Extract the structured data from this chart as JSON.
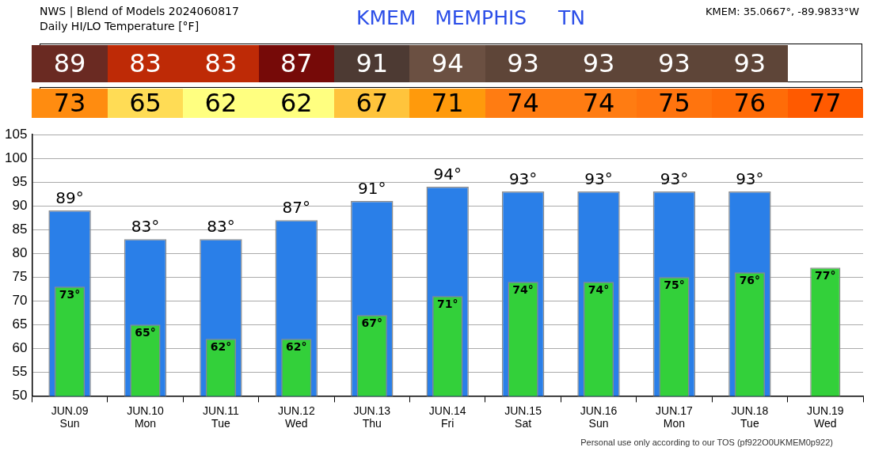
{
  "chart_data": {
    "type": "bar",
    "title": "NWS | Blend of Models 2024060817",
    "subtitle": "Daily HI/LO Temperature [°F]",
    "annotations": [
      "KMEM   MEMPHIS     TN",
      "KMEM: 35.0667°, -89.9833°W",
      "Personal use only according to our TOS (pf922O0UKMEM0p922)",
      "89",
      "83",
      "83",
      "87",
      "91",
      "94",
      "93",
      "93",
      "93",
      "93",
      "73",
      "65",
      "62",
      "62",
      "67",
      "71",
      "74",
      "74",
      "75",
      "76",
      "77"
    ],
    "categories": [
      "JUN.09\nSun",
      "JUN.10\nMon",
      "JUN.11\nTue",
      "JUN.12\nWed",
      "JUN.13\nThu",
      "JUN.14\nFri",
      "JUN.15\nSat",
      "JUN.16\nSun",
      "JUN.17\nMon",
      "JUN.18\nTue",
      "JUN.19\nWed"
    ],
    "series": [
      {
        "color": "#2a7fe8",
        "values": [
          89,
          83,
          83,
          87,
          91,
          94,
          93,
          93,
          93,
          93,
          null
        ],
        "value_labels": [
          "89°",
          "83°",
          "83°",
          "87°",
          "91°",
          "94°",
          "93°",
          "93°",
          "93°",
          "93°",
          null
        ]
      },
      {
        "color": "#33d03a",
        "values": [
          73,
          65,
          62,
          62,
          67,
          71,
          74,
          74,
          75,
          76,
          77
        ],
        "value_labels": [
          "73°",
          "65°",
          "62°",
          "62°",
          "67°",
          "71°",
          "74°",
          "74°",
          "75°",
          "76°",
          "77°"
        ]
      }
    ],
    "ylim": [
      50,
      105
    ],
    "yticks": [
      50,
      55,
      60,
      65,
      70,
      75,
      80,
      85,
      90,
      95,
      100,
      105
    ],
    "grid": "y"
  }
}
